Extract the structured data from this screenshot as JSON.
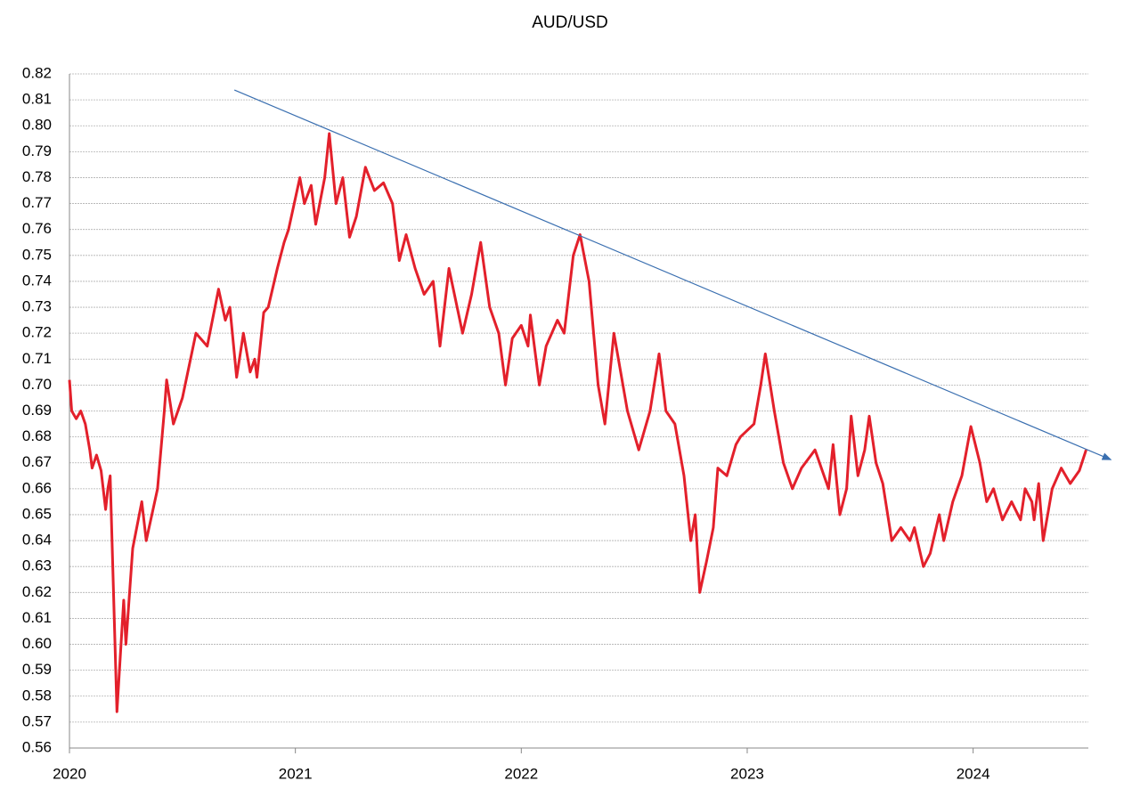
{
  "chart_data": {
    "type": "line",
    "title": "AUD/USD",
    "xlim": [
      2020,
      2024.51
    ],
    "xticks": [
      2020,
      2021,
      2022,
      2023,
      2024
    ],
    "ylim": [
      0.56,
      0.82
    ],
    "yticks": [
      0.56,
      0.57,
      0.58,
      0.59,
      {
        "value": 0.6,
        "label": "0.60"
      },
      0.61,
      0.62,
      0.63,
      0.64,
      0.65,
      0.66,
      0.67,
      0.68,
      0.69,
      {
        "value": 0.7,
        "label": "0.70"
      },
      0.71,
      0.72,
      0.73,
      0.74,
      0.75,
      0.76,
      0.77,
      0.78,
      0.79,
      {
        "value": 0.8,
        "label": "0.80"
      },
      0.81,
      0.82
    ],
    "grid": true,
    "series": [
      {
        "color": "#e3202b",
        "x": [
          2020.0,
          2020.01,
          2020.03,
          2020.05,
          2020.07,
          2020.09,
          2020.1,
          2020.12,
          2020.14,
          2020.16,
          2020.17,
          2020.18,
          2020.21,
          2020.24,
          2020.25,
          2020.28,
          2020.32,
          2020.34,
          2020.39,
          2020.42,
          2020.43,
          2020.46,
          2020.5,
          2020.56,
          2020.61,
          2020.66,
          2020.69,
          2020.71,
          2020.74,
          2020.77,
          2020.8,
          2020.82,
          2020.83,
          2020.86,
          2020.88,
          2020.92,
          2020.95,
          2020.97,
          2021.02,
          2021.04,
          2021.07,
          2021.09,
          2021.13,
          2021.15,
          2021.18,
          2021.21,
          2021.24,
          2021.27,
          2021.31,
          2021.35,
          2021.39,
          2021.43,
          2021.46,
          2021.49,
          2021.53,
          2021.57,
          2021.61,
          2021.64,
          2021.68,
          2021.74,
          2021.78,
          2021.82,
          2021.86,
          2021.9,
          2021.93,
          2021.96,
          2022.0,
          2022.03,
          2022.04,
          2022.08,
          2022.11,
          2022.16,
          2022.19,
          2022.23,
          2022.26,
          2022.3,
          2022.32,
          2022.34,
          2022.37,
          2022.41,
          2022.47,
          2022.52,
          2022.57,
          2022.61,
          2022.64,
          2022.68,
          2022.72,
          2022.75,
          2022.77,
          2022.79,
          2022.82,
          2022.85,
          2022.87,
          2022.91,
          2022.95,
          2022.97,
          2023.03,
          2023.06,
          2023.08,
          2023.12,
          2023.16,
          2023.2,
          2023.24,
          2023.3,
          2023.36,
          2023.38,
          2023.41,
          2023.44,
          2023.46,
          2023.49,
          2023.52,
          2023.54,
          2023.57,
          2023.6,
          2023.64,
          2023.68,
          2023.72,
          2023.74,
          2023.78,
          2023.81,
          2023.85,
          2023.87,
          2023.91,
          2023.95,
          2023.99,
          2024.03,
          2024.06,
          2024.09,
          2024.13,
          2024.17,
          2024.21,
          2024.23,
          2024.26,
          2024.27,
          2024.29,
          2024.31,
          2024.35,
          2024.39,
          2024.43,
          2024.47,
          2024.5
        ],
        "values": [
          0.702,
          0.69,
          0.687,
          0.69,
          0.685,
          0.675,
          0.668,
          0.673,
          0.667,
          0.652,
          0.66,
          0.665,
          0.574,
          0.617,
          0.6,
          0.637,
          0.655,
          0.64,
          0.66,
          0.69,
          0.702,
          0.685,
          0.695,
          0.72,
          0.715,
          0.737,
          0.725,
          0.73,
          0.703,
          0.72,
          0.705,
          0.71,
          0.703,
          0.728,
          0.73,
          0.745,
          0.755,
          0.76,
          0.78,
          0.77,
          0.777,
          0.762,
          0.78,
          0.797,
          0.77,
          0.78,
          0.757,
          0.765,
          0.784,
          0.775,
          0.778,
          0.77,
          0.748,
          0.758,
          0.745,
          0.735,
          0.74,
          0.715,
          0.745,
          0.72,
          0.735,
          0.755,
          0.73,
          0.72,
          0.7,
          0.718,
          0.723,
          0.715,
          0.727,
          0.7,
          0.715,
          0.725,
          0.72,
          0.75,
          0.758,
          0.74,
          0.72,
          0.7,
          0.685,
          0.72,
          0.69,
          0.675,
          0.69,
          0.712,
          0.69,
          0.685,
          0.665,
          0.64,
          0.65,
          0.62,
          0.632,
          0.645,
          0.668,
          0.665,
          0.677,
          0.68,
          0.685,
          0.7,
          0.712,
          0.69,
          0.67,
          0.66,
          0.668,
          0.675,
          0.66,
          0.677,
          0.65,
          0.66,
          0.688,
          0.665,
          0.675,
          0.688,
          0.67,
          0.662,
          0.64,
          0.645,
          0.64,
          0.645,
          0.63,
          0.635,
          0.65,
          0.64,
          0.655,
          0.665,
          0.684,
          0.67,
          0.655,
          0.66,
          0.648,
          0.655,
          0.648,
          0.66,
          0.655,
          0.648,
          0.662,
          0.64,
          0.66,
          0.668,
          0.662,
          0.667,
          0.675
        ]
      }
    ],
    "trendline": {
      "color": "#3a6fb0",
      "x": [
        2020.73,
        2024.61
      ],
      "y": [
        0.8138,
        0.6712
      ]
    }
  }
}
